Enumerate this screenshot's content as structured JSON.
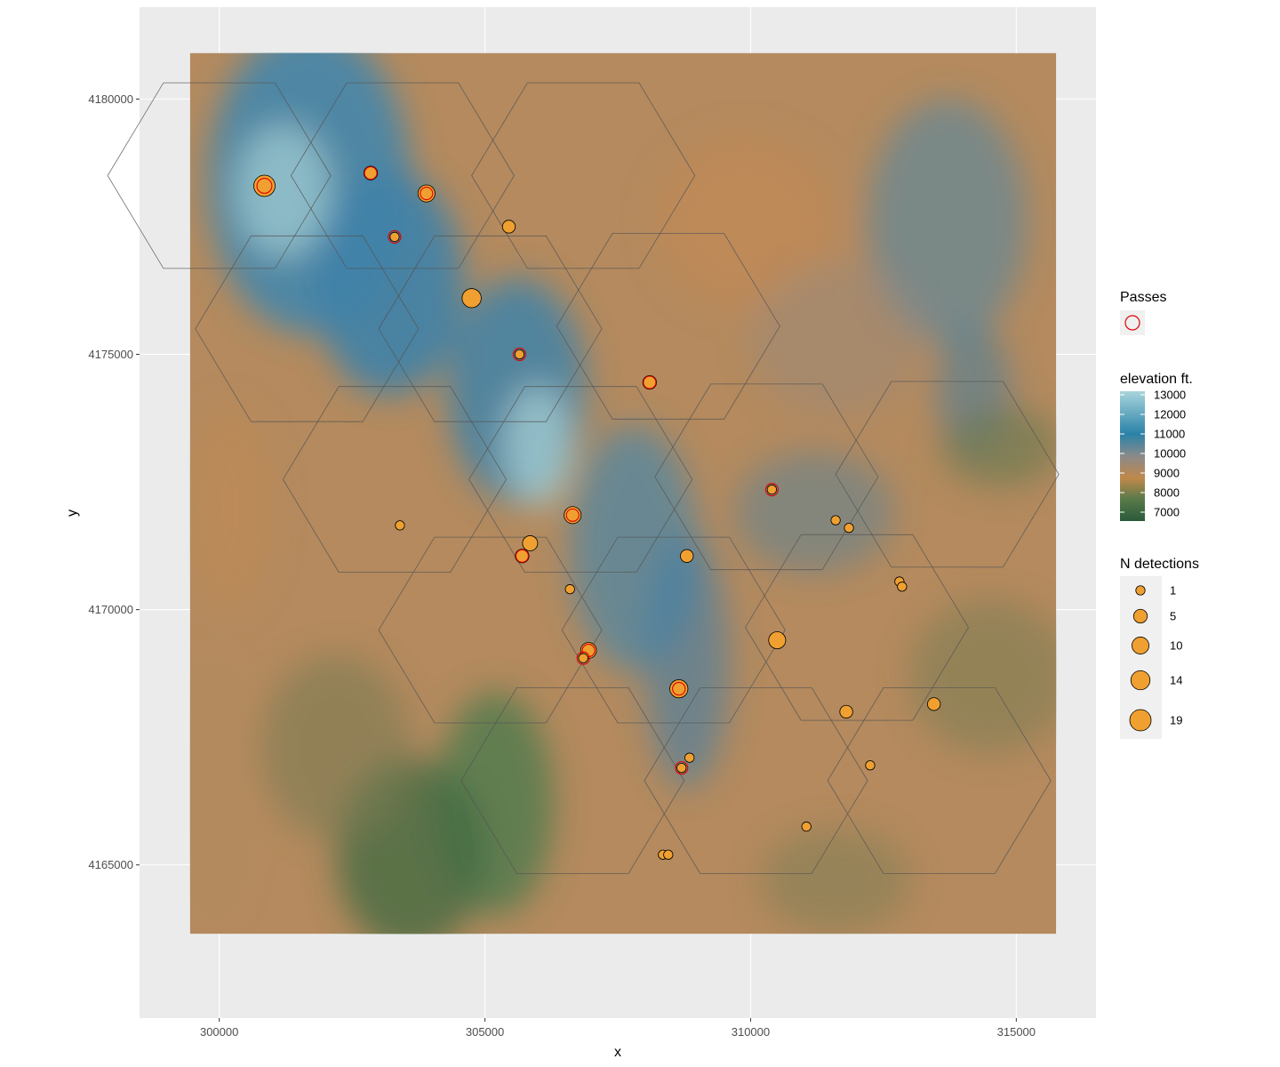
{
  "chart_data": {
    "type": "scatter",
    "title": "",
    "xlabel": "x",
    "ylabel": "y",
    "xlim": [
      298500,
      316500
    ],
    "ylim": [
      4162000,
      4181800
    ],
    "x_ticks": [
      300000,
      305000,
      310000,
      315000
    ],
    "x_tick_labels": [
      "300000",
      "305000",
      "310000",
      "315000"
    ],
    "y_ticks": [
      4165000,
      4170000,
      4175000,
      4180000
    ],
    "y_tick_labels": [
      "4165000",
      "4170000",
      "4175000",
      "4180000"
    ],
    "grid": true,
    "raster_extent": {
      "xmin": 299450,
      "xmax": 315750,
      "ymin": 4163650,
      "ymax": 4180900
    },
    "colors": {
      "panel": "#ebebeb",
      "grid": "#ffffff",
      "point_fill": "#f0a030",
      "pass_ring": "#e00000",
      "hex_line": "#555555",
      "elevation_scale": [
        "#2a5a3a",
        "#5a7a4a",
        "#c0884a",
        "#8a8a8a",
        "#2a82a8",
        "#a8d4dc"
      ]
    },
    "hex_grid": {
      "centers": [
        [
          300000,
          4178500
        ],
        [
          303450,
          4178500
        ],
        [
          301650,
          4175500
        ],
        [
          305100,
          4175500
        ],
        [
          306850,
          4178500
        ],
        [
          306800,
          4172550
        ],
        [
          303300,
          4172550
        ],
        [
          308450,
          4175550
        ],
        [
          310300,
          4172600
        ],
        [
          313700,
          4172650
        ],
        [
          308550,
          4169600
        ],
        [
          305100,
          4169600
        ],
        [
          312000,
          4169650
        ],
        [
          306650,
          4166650
        ],
        [
          310100,
          4166650
        ],
        [
          313550,
          4166650
        ]
      ]
    },
    "legend": {
      "passes_title": "Passes",
      "elevation_title": "elevation ft.",
      "elevation_labels": [
        "13000",
        "12000",
        "11000",
        "10000",
        "9000",
        "8000",
        "7000"
      ],
      "detections_title": "N detections",
      "detections_labels": [
        "1",
        "5",
        "10",
        "14",
        "19"
      ],
      "detections_values": [
        1,
        5,
        10,
        14,
        19
      ]
    },
    "series": [
      {
        "name": "N detections",
        "points": [
          {
            "x": 300850,
            "y": 4178300,
            "n": 19,
            "pass": true
          },
          {
            "x": 302850,
            "y": 4178550,
            "n": 5,
            "pass": true
          },
          {
            "x": 303900,
            "y": 4178150,
            "n": 10,
            "pass": true
          },
          {
            "x": 303300,
            "y": 4177300,
            "n": 1,
            "pass": true
          },
          {
            "x": 305450,
            "y": 4177500,
            "n": 4,
            "pass": false
          },
          {
            "x": 304750,
            "y": 4176100,
            "n": 14,
            "pass": false
          },
          {
            "x": 305650,
            "y": 4175000,
            "n": 1,
            "pass": true
          },
          {
            "x": 308100,
            "y": 4174450,
            "n": 5,
            "pass": true
          },
          {
            "x": 310400,
            "y": 4172350,
            "n": 1,
            "pass": true
          },
          {
            "x": 303400,
            "y": 4171650,
            "n": 1,
            "pass": false
          },
          {
            "x": 306650,
            "y": 4171850,
            "n": 10,
            "pass": true
          },
          {
            "x": 305850,
            "y": 4171300,
            "n": 7,
            "pass": false
          },
          {
            "x": 305700,
            "y": 4171050,
            "n": 5,
            "pass": true
          },
          {
            "x": 308800,
            "y": 4171050,
            "n": 4,
            "pass": false
          },
          {
            "x": 311600,
            "y": 4171750,
            "n": 1,
            "pass": false
          },
          {
            "x": 311850,
            "y": 4171600,
            "n": 1,
            "pass": false
          },
          {
            "x": 306600,
            "y": 4170400,
            "n": 1,
            "pass": false
          },
          {
            "x": 312800,
            "y": 4170550,
            "n": 1,
            "pass": false
          },
          {
            "x": 312850,
            "y": 4170450,
            "n": 1,
            "pass": false
          },
          {
            "x": 306950,
            "y": 4169200,
            "n": 8,
            "pass": true
          },
          {
            "x": 306850,
            "y": 4169050,
            "n": 1,
            "pass": true
          },
          {
            "x": 310500,
            "y": 4169400,
            "n": 10,
            "pass": false
          },
          {
            "x": 308650,
            "y": 4168450,
            "n": 12,
            "pass": true
          },
          {
            "x": 311800,
            "y": 4168000,
            "n": 4,
            "pass": false
          },
          {
            "x": 313450,
            "y": 4168150,
            "n": 4,
            "pass": false
          },
          {
            "x": 308850,
            "y": 4167100,
            "n": 1,
            "pass": false
          },
          {
            "x": 308700,
            "y": 4166900,
            "n": 1,
            "pass": true
          },
          {
            "x": 312250,
            "y": 4166950,
            "n": 1,
            "pass": false
          },
          {
            "x": 311050,
            "y": 4165750,
            "n": 1,
            "pass": false
          },
          {
            "x": 308350,
            "y": 4165200,
            "n": 1,
            "pass": false
          },
          {
            "x": 308450,
            "y": 4165200,
            "n": 1,
            "pass": false
          }
        ]
      }
    ]
  }
}
